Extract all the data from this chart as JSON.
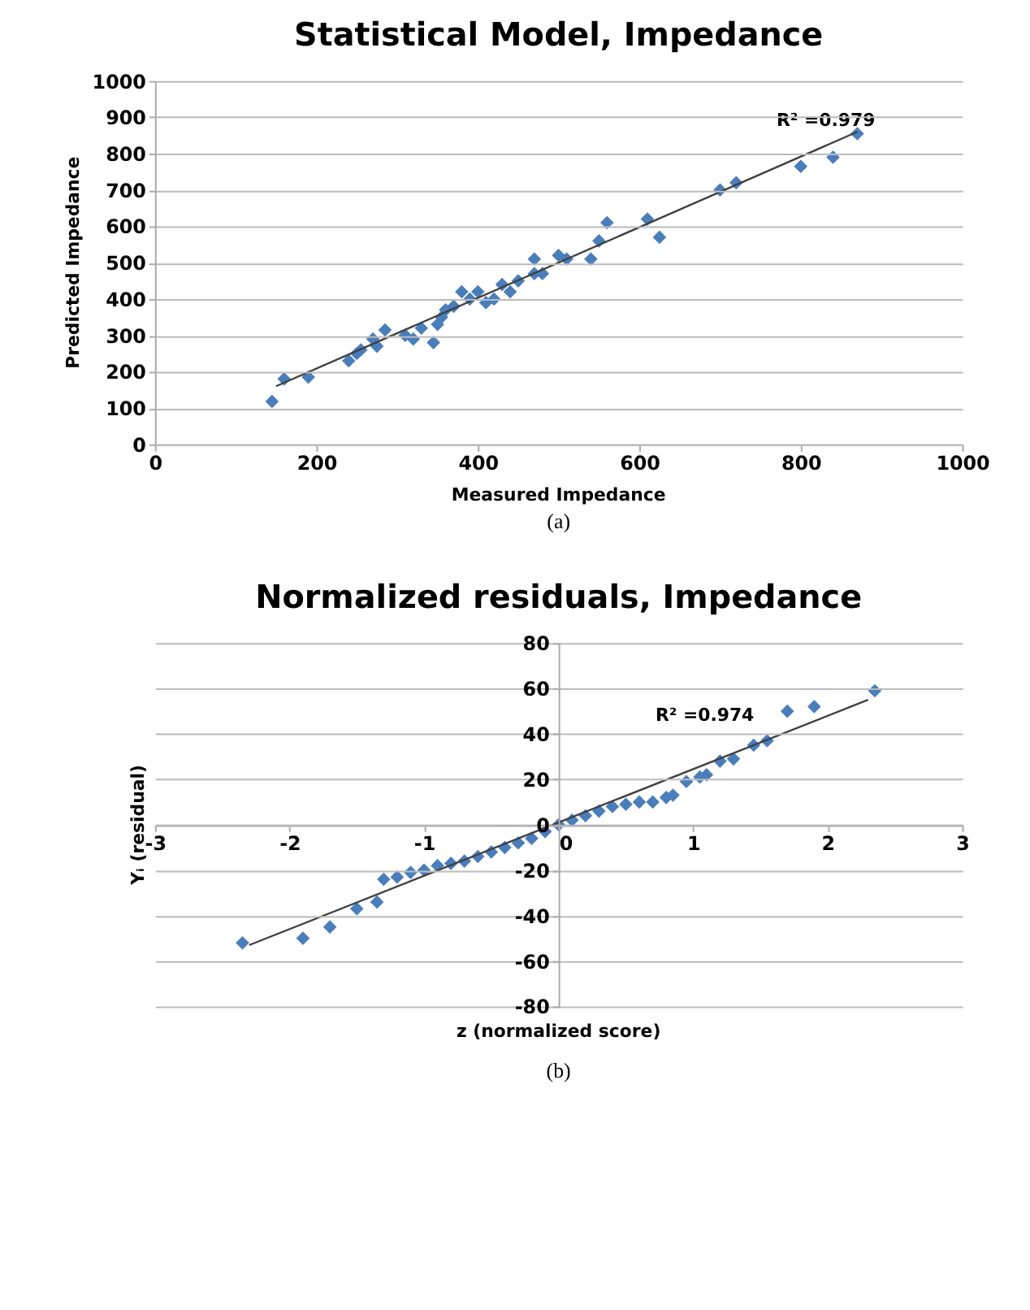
{
  "chart_data": [
    {
      "type": "scatter",
      "title": "Statistical Model, Impedance",
      "xlabel": "Measured Impedance",
      "ylabel": "Predicted Impedance",
      "xlim": [
        0,
        1000
      ],
      "ylim": [
        0,
        1000
      ],
      "xticks": [
        0,
        200,
        400,
        600,
        800,
        1000
      ],
      "yticks": [
        0,
        100,
        200,
        300,
        400,
        500,
        600,
        700,
        800,
        900,
        1000
      ],
      "grid": "y",
      "marker": "diamond",
      "annotations": [
        "R² =0.979",
        "(a)"
      ],
      "series": [
        {
          "color": "#4a7ebb",
          "x": [
            145,
            160,
            190,
            240,
            250,
            255,
            270,
            275,
            285,
            310,
            320,
            330,
            345,
            350,
            355,
            360,
            370,
            380,
            390,
            400,
            410,
            420,
            430,
            440,
            450,
            470,
            470,
            480,
            500,
            510,
            540,
            550,
            560,
            610,
            625,
            700,
            720,
            800,
            840,
            870
          ],
          "values": [
            118,
            180,
            185,
            230,
            250,
            260,
            290,
            270,
            315,
            300,
            290,
            320,
            280,
            330,
            350,
            370,
            380,
            420,
            400,
            420,
            390,
            400,
            440,
            420,
            450,
            470,
            510,
            470,
            520,
            510,
            510,
            560,
            610,
            620,
            570,
            700,
            720,
            765,
            790,
            855
          ]
        },
        {
          "type": "line",
          "marker": "none",
          "color": "#404040",
          "x": [
            150,
            870
          ],
          "values": [
            160,
            860
          ]
        }
      ]
    },
    {
      "type": "scatter",
      "title": "Normalized residuals, Impedance",
      "xlabel": "z (normalized score)",
      "ylabel": "Yᵢ (residual)",
      "xlim": [
        -3,
        3
      ],
      "ylim": [
        -80,
        80
      ],
      "xticks": [
        -3,
        -2,
        -1,
        0,
        1,
        2,
        3
      ],
      "yticks": [
        -80,
        -60,
        -40,
        -20,
        0,
        20,
        40,
        60,
        80
      ],
      "grid": "y",
      "marker": "diamond",
      "annotations": [
        "R² =0.974",
        "(b)"
      ],
      "series": [
        {
          "color": "#4a7ebb",
          "x": [
            -2.35,
            -1.9,
            -1.7,
            -1.5,
            -1.35,
            -1.3,
            -1.2,
            -1.1,
            -1.0,
            -0.9,
            -0.8,
            -0.7,
            -0.6,
            -0.5,
            -0.4,
            -0.3,
            -0.2,
            -0.1,
            0,
            0.1,
            0.2,
            0.3,
            0.4,
            0.5,
            0.6,
            0.7,
            0.8,
            0.85,
            0.95,
            1.05,
            1.1,
            1.2,
            1.3,
            1.45,
            1.55,
            1.7,
            1.9,
            2.35
          ],
          "values": [
            -52,
            -50,
            -45,
            -37,
            -34,
            -24,
            -23,
            -21,
            -20,
            -18,
            -17,
            -16,
            -14,
            -12,
            -10,
            -8,
            -6,
            -3,
            0,
            2,
            4,
            6,
            8,
            9,
            10,
            10,
            12,
            13,
            19,
            21,
            22,
            28,
            29,
            35,
            37,
            50,
            52,
            59
          ]
        },
        {
          "type": "line",
          "marker": "none",
          "color": "#404040",
          "x": [
            -2.3,
            2.3
          ],
          "values": [
            -53,
            55
          ]
        }
      ]
    }
  ]
}
